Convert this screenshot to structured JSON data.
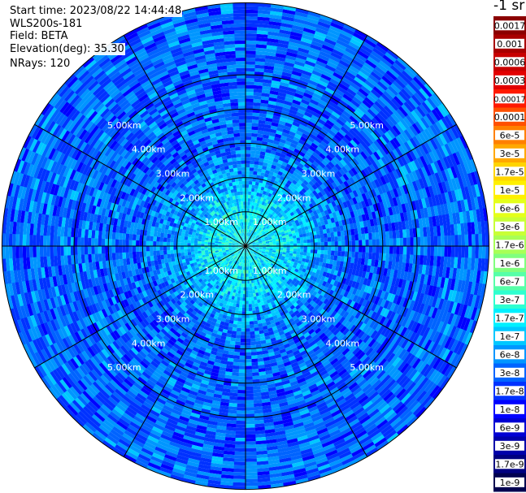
{
  "header": {
    "start_time": "Start time: 2023/08/22 14:44:48",
    "instrument": "WLS200s-181",
    "field": "Field: BETA",
    "elevation": "Elevation(deg): 35.30",
    "nrays": "NRays: 120"
  },
  "colorbar": {
    "unit": "-1 sr",
    "labels": [
      "0.0017",
      "0.001",
      "0.0006",
      "0.0003",
      "0.00017",
      "0.0001",
      "6e-5",
      "3e-5",
      "1.7e-5",
      "1e-5",
      "6e-6",
      "3e-6",
      "1.7e-6",
      "1e-6",
      "6e-7",
      "3e-7",
      "1.7e-7",
      "1e-7",
      "6e-8",
      "3e-8",
      "1.7e-8",
      "1e-8",
      "6e-9",
      "3e-9",
      "1.7e-9",
      "1e-9"
    ],
    "colors": [
      "#8b0000",
      "#a80000",
      "#c80000",
      "#e20000",
      "#ff1a00",
      "#ff5000",
      "#ff8000",
      "#ffa800",
      "#ffd400",
      "#fff000",
      "#e4ff1a",
      "#c8ff36",
      "#a8ff56",
      "#80ff7e",
      "#56ffa8",
      "#2effd0",
      "#00f0ff",
      "#00c8ff",
      "#0096ff",
      "#0064ff",
      "#0032ff",
      "#0000ff",
      "#0000d4",
      "#0000aa",
      "#000080",
      "#000050"
    ]
  },
  "chart_data": {
    "type": "heatmap",
    "subtype": "polar-ppi",
    "field": "BETA",
    "range_rings_km": [
      1,
      2,
      3,
      4,
      5
    ],
    "ring_labels": [
      "1.00km",
      "2.00km",
      "3.00km",
      "4.00km",
      "5.00km"
    ],
    "radial_spokes_deg": [
      0,
      30,
      60,
      90,
      120,
      150,
      180,
      210,
      240,
      270,
      300,
      330
    ],
    "max_range_km": 7.1,
    "color_scale": "log",
    "value_range": [
      1e-09,
      0.0017
    ],
    "approx_range_profile": {
      "range_km": [
        0.5,
        1.0,
        1.5,
        2.0,
        3.0,
        4.0,
        5.0,
        6.0,
        7.0
      ],
      "beta": [
        1.7e-07,
        1.7e-07,
        1e-07,
        6e-08,
        3e-08,
        3e-08,
        3e-08,
        3e-08,
        3e-08
      ]
    }
  }
}
